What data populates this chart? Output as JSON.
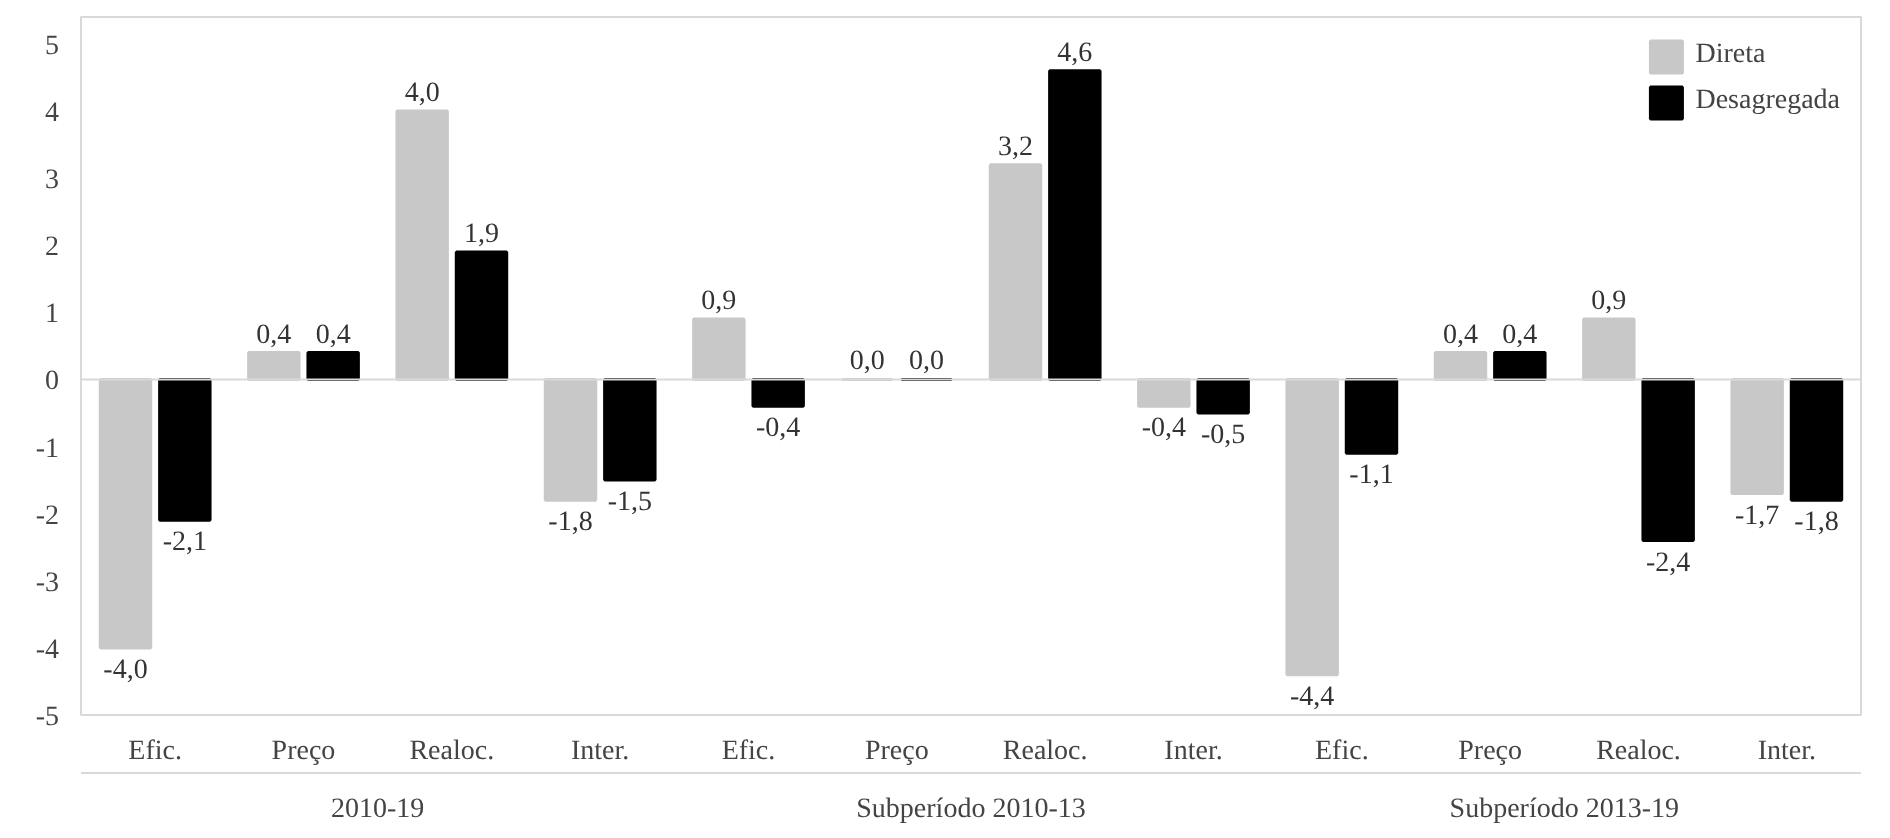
{
  "chart_data": {
    "type": "bar",
    "categories": [
      "Efic.",
      "Preço",
      "Realoc.",
      "Inter.",
      "Efic.",
      "Preço",
      "Realoc.",
      "Inter.",
      "Efic.",
      "Preço",
      "Realoc.",
      "Inter."
    ],
    "series": [
      {
        "name": "Direta",
        "color": "#c8c8c8",
        "values": [
          -4.0,
          0.4,
          4.0,
          -1.8,
          0.9,
          0.0,
          3.2,
          -0.4,
          -4.4,
          0.4,
          0.9,
          -1.7
        ],
        "value_labels": [
          "-4,0",
          "0,4",
          "4,0",
          "-1,8",
          "0,9",
          "0,0",
          "3,2",
          "-0,4",
          "-4,4",
          "0,4",
          "0,9",
          "-1,7"
        ]
      },
      {
        "name": "Desagregada",
        "color": "#000000",
        "values": [
          -2.1,
          0.4,
          1.9,
          -1.5,
          -0.4,
          0.0,
          4.6,
          -0.5,
          -1.1,
          0.4,
          -2.4,
          -1.8
        ],
        "value_labels": [
          "-2,1",
          "0,4",
          "1,9",
          "-1,5",
          "-0,4",
          "0,0",
          "4,6",
          "-0,5",
          "-1,1",
          "0,4",
          "-2,4",
          "-1,8"
        ]
      }
    ],
    "annotations": [
      "2010-19",
      "Subperíodo 2010-13",
      "Subperíodo 2013-19"
    ],
    "ylim": [
      -5,
      5.4
    ],
    "yticks": [
      -5,
      -4,
      -3,
      -2,
      -1,
      0,
      1,
      2,
      3,
      4,
      5
    ],
    "ref_lines": [
      {
        "axis": "y",
        "value": 0,
        "color": "#d9d9d9"
      }
    ],
    "grid": false,
    "legend": "top right"
  }
}
